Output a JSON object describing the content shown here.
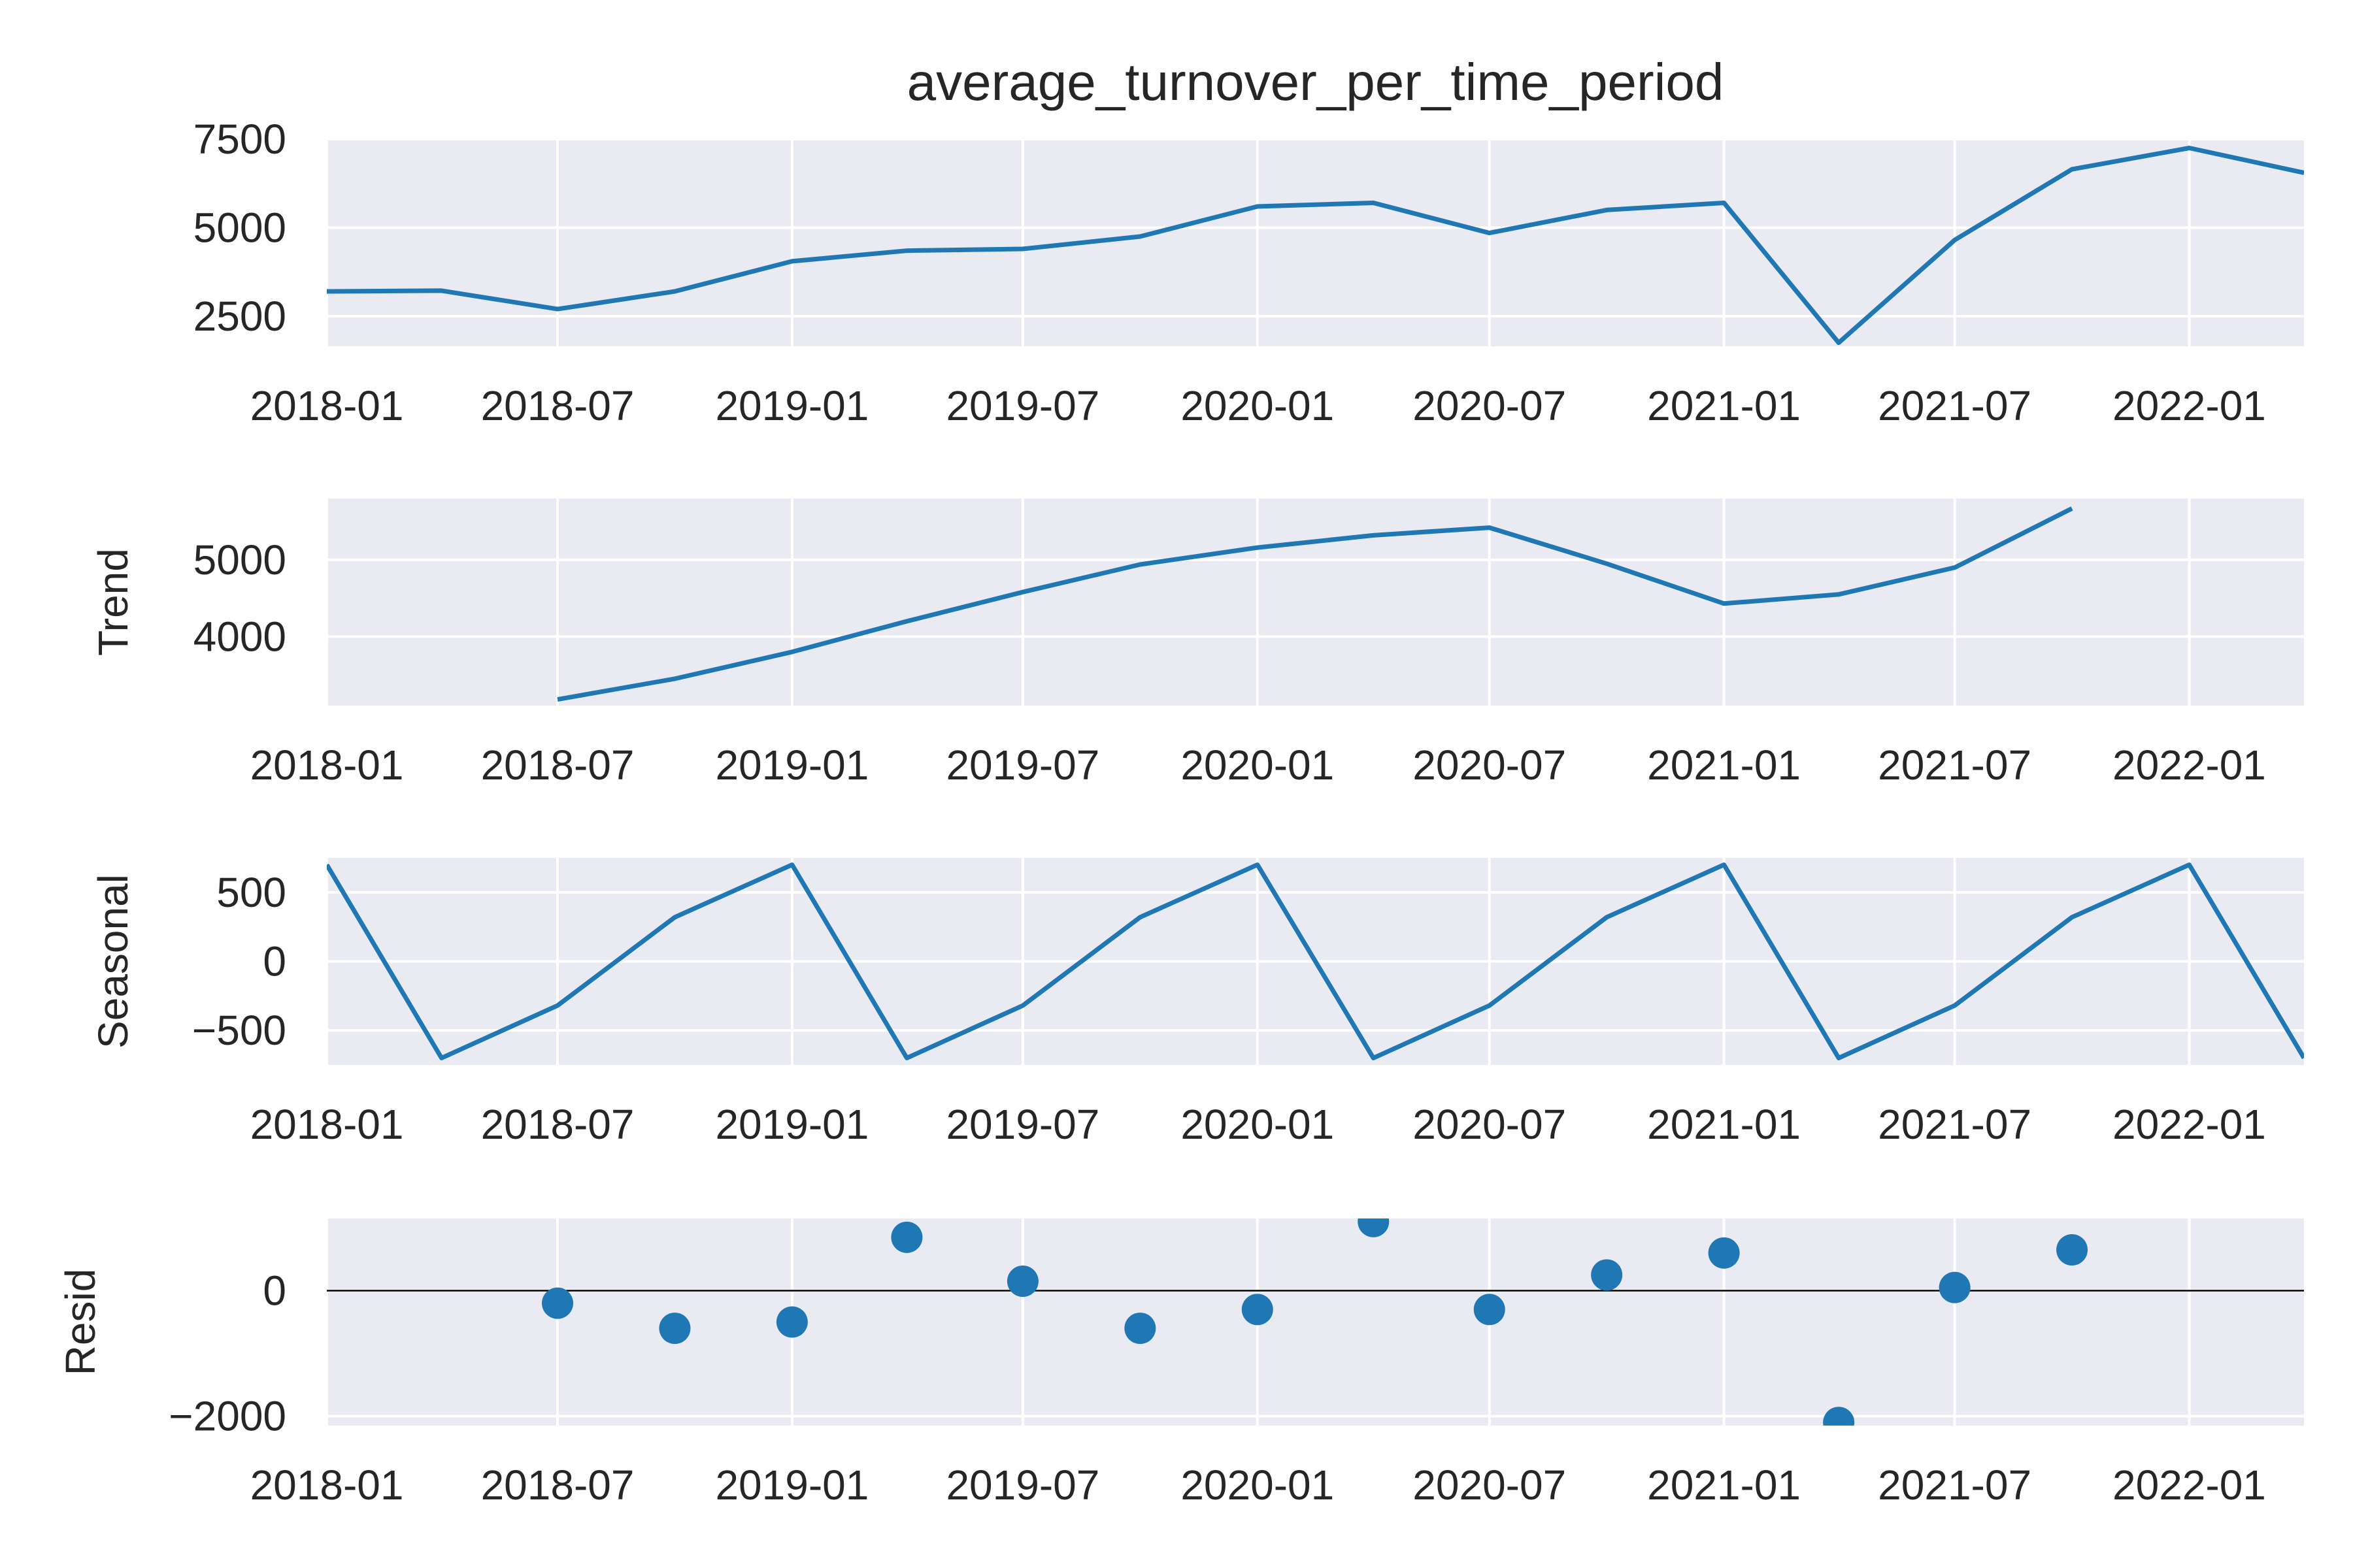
{
  "chart_data": [
    {
      "type": "line",
      "title": "average_turnover_per_time_period",
      "ylabel": "",
      "x": [
        "2018-01-01",
        "2018-04-01",
        "2018-07-01",
        "2018-10-01",
        "2019-01-01",
        "2019-04-01",
        "2019-07-01",
        "2019-10-01",
        "2020-01-01",
        "2020-04-01",
        "2020-07-01",
        "2020-10-01",
        "2021-01-01",
        "2021-04-01",
        "2021-07-01",
        "2021-10-01",
        "2022-01-01",
        "2022-04-01"
      ],
      "values": [
        3200,
        3220,
        2700,
        3200,
        4050,
        4350,
        4400,
        4750,
        5600,
        5700,
        4850,
        5500,
        5700,
        1750,
        4650,
        6650,
        7250,
        6550
      ],
      "ylim": [
        1650,
        7500
      ],
      "xlim": [
        "2018-01-01",
        "2022-04-01"
      ],
      "yticks": [
        2500,
        5000,
        7500
      ],
      "xticks": [
        "2018-01",
        "2018-07",
        "2019-01",
        "2019-07",
        "2020-01",
        "2020-07",
        "2021-01",
        "2021-07",
        "2022-01"
      ],
      "color": "#1f77b4",
      "grid": true
    },
    {
      "type": "line",
      "title": "",
      "ylabel": "Trend",
      "x": [
        "2018-07-01",
        "2018-10-01",
        "2019-01-01",
        "2019-04-01",
        "2019-07-01",
        "2019-10-01",
        "2020-01-01",
        "2020-04-01",
        "2020-07-01",
        "2020-10-01",
        "2021-01-01",
        "2021-04-01",
        "2021-07-01",
        "2021-10-01"
      ],
      "values": [
        3180,
        3450,
        3800,
        4200,
        4580,
        4940,
        5160,
        5320,
        5420,
        4950,
        4430,
        4550,
        4900,
        5670
      ],
      "ylim": [
        3100,
        5800
      ],
      "xlim": [
        "2018-01-01",
        "2022-04-01"
      ],
      "yticks": [
        4000,
        5000
      ],
      "xticks": [
        "2018-01",
        "2018-07",
        "2019-01",
        "2019-07",
        "2020-01",
        "2020-07",
        "2021-01",
        "2021-07",
        "2022-01"
      ],
      "color": "#1f77b4",
      "grid": true
    },
    {
      "type": "line",
      "title": "",
      "ylabel": "Seasonal",
      "x": [
        "2018-01-01",
        "2018-04-01",
        "2018-07-01",
        "2018-10-01",
        "2019-01-01",
        "2019-04-01",
        "2019-07-01",
        "2019-10-01",
        "2020-01-01",
        "2020-04-01",
        "2020-07-01",
        "2020-10-01",
        "2021-01-01",
        "2021-04-01",
        "2021-07-01",
        "2021-10-01",
        "2022-01-01",
        "2022-04-01"
      ],
      "values": [
        700,
        -700,
        -320,
        320,
        700,
        -700,
        -320,
        320,
        700,
        -700,
        -320,
        320,
        700,
        -700,
        -320,
        320,
        700,
        -700
      ],
      "ylim": [
        -750,
        750
      ],
      "xlim": [
        "2018-01-01",
        "2022-04-01"
      ],
      "yticks": [
        -500,
        0,
        500
      ],
      "ytick_labels": [
        "−500",
        "0",
        "500"
      ],
      "xticks": [
        "2018-01",
        "2018-07",
        "2019-01",
        "2019-07",
        "2020-01",
        "2020-07",
        "2021-01",
        "2021-07",
        "2022-01"
      ],
      "color": "#1f77b4",
      "grid": true
    },
    {
      "type": "scatter",
      "title": "",
      "ylabel": "Resid",
      "x": [
        "2018-07-01",
        "2018-10-01",
        "2019-01-01",
        "2019-04-01",
        "2019-07-01",
        "2019-10-01",
        "2020-01-01",
        "2020-04-01",
        "2020-07-01",
        "2020-10-01",
        "2021-01-01",
        "2021-04-01",
        "2021-07-01",
        "2021-10-01"
      ],
      "values": [
        -200,
        -600,
        -500,
        850,
        150,
        -600,
        -300,
        1100,
        -300,
        250,
        600,
        -2100,
        50,
        650
      ],
      "ylim": [
        -2150,
        1150
      ],
      "xlim": [
        "2018-01-01",
        "2022-04-01"
      ],
      "yticks": [
        -2000,
        0
      ],
      "ytick_labels": [
        "−2000",
        "0"
      ],
      "xticks": [
        "2018-01",
        "2018-07",
        "2019-01",
        "2019-07",
        "2020-01",
        "2020-07",
        "2021-01",
        "2021-07",
        "2022-01"
      ],
      "color": "#1f77b4",
      "grid": true,
      "zero_line": true
    }
  ]
}
